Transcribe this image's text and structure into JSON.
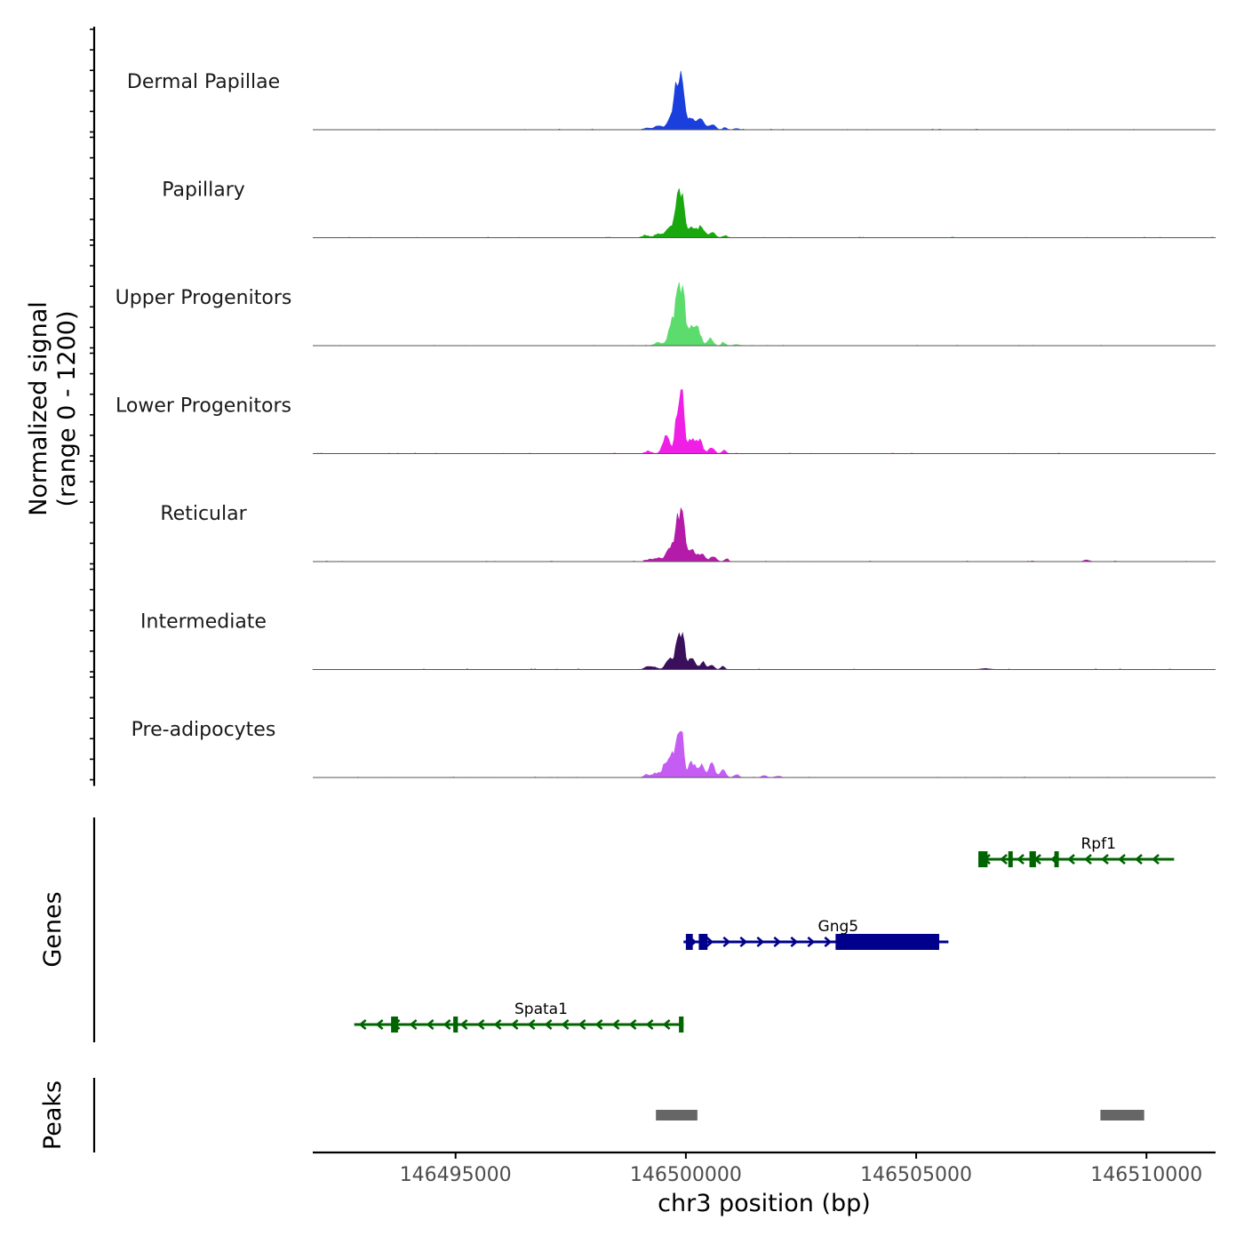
{
  "chart_data": {
    "type": "area",
    "title": "",
    "chromosome": "chr3",
    "xlabel": "chr3 position (bp)",
    "ylabel_line1": "Normalized signal",
    "ylabel_line2": "(range 0 - 1200)",
    "ylim": [
      0,
      1200
    ],
    "xlim": [
      146491900,
      146511500
    ],
    "x_ticks": [
      146495000,
      146500000,
      146505000,
      146510000
    ],
    "x_tick_labels": [
      "146495000",
      "146500000",
      "146505000",
      "146510000"
    ],
    "genes_label": "Genes",
    "peaks_label": "Peaks",
    "tracks": [
      {
        "name": "Dermal Papillae",
        "color": "#1b3fdc",
        "peaks": [
          [
            146499840,
            860,
            70
          ],
          [
            146499930,
            560,
            40
          ],
          [
            146499700,
            300,
            90
          ],
          [
            146500120,
            220,
            110
          ],
          [
            146500350,
            150,
            80
          ],
          [
            146500580,
            110,
            60
          ],
          [
            146499400,
            70,
            80
          ],
          [
            146499150,
            30,
            70
          ],
          [
            146500850,
            50,
            40
          ],
          [
            146501100,
            20,
            60
          ]
        ]
      },
      {
        "name": "Papillary",
        "color": "#1aa80f",
        "peaks": [
          [
            146499840,
            760,
            70
          ],
          [
            146499930,
            480,
            40
          ],
          [
            146499650,
            200,
            90
          ],
          [
            146500120,
            220,
            110
          ],
          [
            146500350,
            170,
            70
          ],
          [
            146500580,
            110,
            60
          ],
          [
            146499400,
            70,
            80
          ],
          [
            146499120,
            40,
            70
          ],
          [
            146500850,
            40,
            50
          ]
        ]
      },
      {
        "name": "Upper Progenitors",
        "color": "#5bdc6c",
        "peaks": [
          [
            146499850,
            1000,
            70
          ],
          [
            146499940,
            680,
            40
          ],
          [
            146499700,
            380,
            80
          ],
          [
            146500130,
            420,
            90
          ],
          [
            146500280,
            200,
            60
          ],
          [
            146500530,
            140,
            60
          ],
          [
            146499400,
            60,
            80
          ],
          [
            146500820,
            60,
            40
          ],
          [
            146501100,
            20,
            60
          ]
        ]
      },
      {
        "name": "Lower Progenitors",
        "color": "#f01fe6",
        "peaks": [
          [
            146499850,
            960,
            70
          ],
          [
            146499930,
            700,
            40
          ],
          [
            146499570,
            330,
            70
          ],
          [
            146500130,
            270,
            100
          ],
          [
            146500310,
            200,
            60
          ],
          [
            146500560,
            120,
            60
          ],
          [
            146499180,
            40,
            70
          ],
          [
            146500830,
            80,
            40
          ]
        ]
      },
      {
        "name": "Reticular",
        "color": "#b51ba9",
        "peaks": [
          [
            146499850,
            860,
            70
          ],
          [
            146499940,
            560,
            40
          ],
          [
            146499660,
            260,
            80
          ],
          [
            146500120,
            240,
            90
          ],
          [
            146500350,
            150,
            70
          ],
          [
            146500600,
            100,
            60
          ],
          [
            146499400,
            70,
            80
          ],
          [
            146499200,
            40,
            70
          ],
          [
            146500880,
            60,
            40
          ],
          [
            146508700,
            30,
            60
          ]
        ]
      },
      {
        "name": "Intermediate",
        "color": "#3a0f5c",
        "peaks": [
          [
            146499840,
            740,
            60
          ],
          [
            146499940,
            440,
            40
          ],
          [
            146499640,
            210,
            70
          ],
          [
            146500110,
            220,
            80
          ],
          [
            146500370,
            130,
            60
          ],
          [
            146500560,
            90,
            50
          ],
          [
            146500800,
            70,
            40
          ],
          [
            146499300,
            50,
            80
          ],
          [
            146499150,
            40,
            60
          ],
          [
            146506500,
            20,
            100
          ]
        ]
      },
      {
        "name": "Pre-adipocytes",
        "color": "#c55cf4",
        "peaks": [
          [
            146499820,
            700,
            70
          ],
          [
            146499920,
            520,
            40
          ],
          [
            146499620,
            360,
            100
          ],
          [
            146500130,
            280,
            90
          ],
          [
            146500340,
            230,
            60
          ],
          [
            146500560,
            260,
            60
          ],
          [
            146500800,
            150,
            60
          ],
          [
            146499150,
            60,
            60
          ],
          [
            146499350,
            70,
            70
          ],
          [
            146501100,
            60,
            50
          ],
          [
            146501700,
            40,
            50
          ],
          [
            146502000,
            30,
            60
          ]
        ]
      }
    ],
    "genes": [
      {
        "name": "Rpf1",
        "strand": "-",
        "color": "#006400",
        "row": 1,
        "start": 146506350,
        "end": 146510600,
        "exons": [
          [
            146506350,
            146506550
          ],
          [
            146507000,
            146507080
          ],
          [
            146507460,
            146507600
          ],
          [
            146508000,
            146508050
          ]
        ]
      },
      {
        "name": "Gng5",
        "strand": "+",
        "color": "#00008b",
        "row": 2,
        "start": 146499950,
        "end": 146505700,
        "exons": [
          [
            146500000,
            146500150
          ],
          [
            146500280,
            146500470
          ],
          [
            146503250,
            146505500
          ]
        ]
      },
      {
        "name": "Spata1",
        "strand": "-",
        "color": "#006400",
        "row": 3,
        "start": 146492800,
        "end": 146499950,
        "exons": [
          [
            146493600,
            146493750
          ],
          [
            146494950,
            146495050
          ],
          [
            146499850,
            146499950
          ]
        ]
      }
    ],
    "peaks": [
      {
        "start": 146499350,
        "end": 146500250
      },
      {
        "start": 146509000,
        "end": 146509950
      }
    ],
    "peak_color": "#666666"
  }
}
